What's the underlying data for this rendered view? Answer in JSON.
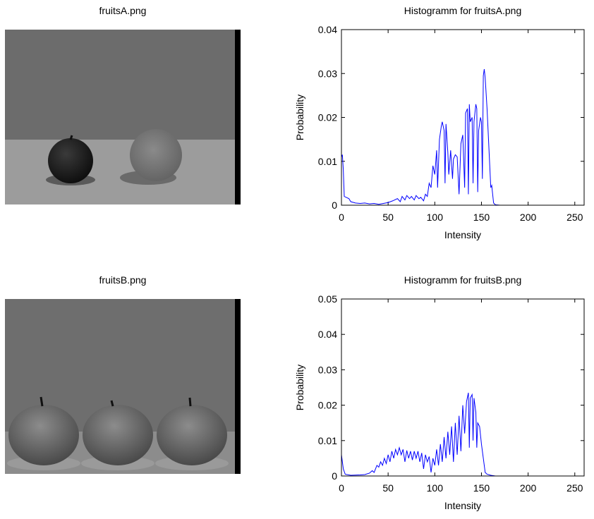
{
  "images": [
    {
      "title": "fruitsA.png"
    },
    {
      "title": "fruitsB.png"
    }
  ],
  "chart_data": [
    {
      "type": "line",
      "title": "Histogramm for fruitsA.png",
      "x_label": "Intensity",
      "y_label": "Probability",
      "color": "#0000ff",
      "xlim": [
        0,
        260
      ],
      "xticks": [
        0,
        50,
        100,
        150,
        200,
        250
      ],
      "ylim": [
        0,
        0.04
      ],
      "yticks": [
        0,
        0.01,
        0.02,
        0.03,
        0.04
      ],
      "x": [
        0,
        1,
        2,
        3,
        5,
        8,
        10,
        15,
        20,
        25,
        30,
        35,
        40,
        45,
        50,
        55,
        60,
        63,
        65,
        68,
        70,
        73,
        75,
        78,
        80,
        83,
        85,
        88,
        90,
        92,
        94,
        96,
        98,
        100,
        102,
        103,
        105,
        107,
        108,
        110,
        111,
        112,
        114,
        115,
        117,
        119,
        120,
        122,
        124,
        126,
        128,
        130,
        132,
        133,
        135,
        136,
        137,
        138,
        140,
        141,
        142,
        144,
        145,
        146,
        147,
        149,
        150,
        151,
        152,
        153,
        154,
        156,
        158,
        160,
        161,
        163,
        165,
        170,
        255
      ],
      "values": [
        0.011,
        0.0115,
        0.008,
        0.002,
        0.0018,
        0.0015,
        0.0008,
        0.0005,
        0.0004,
        0.0005,
        0.0003,
        0.0004,
        0.0002,
        0.0004,
        0.0006,
        0.001,
        0.0015,
        0.0008,
        0.002,
        0.0012,
        0.0022,
        0.0015,
        0.002,
        0.0012,
        0.0022,
        0.0015,
        0.0018,
        0.001,
        0.0025,
        0.002,
        0.005,
        0.004,
        0.009,
        0.007,
        0.0125,
        0.004,
        0.015,
        0.018,
        0.019,
        0.017,
        0.005,
        0.0185,
        0.012,
        0.007,
        0.0125,
        0.006,
        0.0105,
        0.0115,
        0.011,
        0.0025,
        0.014,
        0.016,
        0.004,
        0.021,
        0.022,
        0.0025,
        0.023,
        0.019,
        0.02,
        0.005,
        0.019,
        0.023,
        0.022,
        0.003,
        0.017,
        0.02,
        0.019,
        0.006,
        0.0295,
        0.031,
        0.029,
        0.022,
        0.013,
        0.004,
        0.0045,
        0.0005,
        0.0001,
        0,
        0
      ]
    },
    {
      "type": "line",
      "title": "Histogramm for fruitsB.png",
      "x_label": "Intensity",
      "y_label": "Probability",
      "color": "#0000ff",
      "xlim": [
        0,
        260
      ],
      "xticks": [
        0,
        50,
        100,
        150,
        200,
        250
      ],
      "ylim": [
        0,
        0.05
      ],
      "yticks": [
        0,
        0.01,
        0.02,
        0.03,
        0.04,
        0.05
      ],
      "x": [
        0,
        1,
        2,
        4,
        10,
        20,
        25,
        30,
        33,
        35,
        38,
        40,
        42,
        44,
        46,
        48,
        50,
        52,
        54,
        56,
        58,
        60,
        62,
        64,
        66,
        68,
        70,
        72,
        74,
        76,
        78,
        80,
        82,
        84,
        86,
        88,
        90,
        92,
        94,
        96,
        98,
        100,
        102,
        104,
        106,
        108,
        110,
        112,
        114,
        116,
        118,
        120,
        122,
        124,
        126,
        128,
        130,
        132,
        134,
        136,
        137,
        138,
        140,
        141,
        142,
        144,
        145,
        146,
        148,
        150,
        152,
        154,
        156,
        160,
        165,
        255
      ],
      "values": [
        0.006,
        0.004,
        0.002,
        0.0005,
        0.0002,
        0.0003,
        0.0004,
        0.0008,
        0.0015,
        0.001,
        0.003,
        0.0025,
        0.004,
        0.003,
        0.005,
        0.0035,
        0.006,
        0.004,
        0.007,
        0.005,
        0.0075,
        0.006,
        0.008,
        0.006,
        0.0075,
        0.004,
        0.0072,
        0.005,
        0.007,
        0.0045,
        0.007,
        0.005,
        0.007,
        0.004,
        0.0065,
        0.002,
        0.006,
        0.004,
        0.0055,
        0.001,
        0.005,
        0.003,
        0.0075,
        0.003,
        0.009,
        0.004,
        0.011,
        0.005,
        0.0125,
        0.006,
        0.014,
        0.004,
        0.015,
        0.006,
        0.017,
        0.007,
        0.02,
        0.012,
        0.021,
        0.0235,
        0.008,
        0.022,
        0.023,
        0.01,
        0.022,
        0.018,
        0.008,
        0.015,
        0.014,
        0.009,
        0.005,
        0.001,
        0.0005,
        0.0002,
        0,
        0
      ]
    }
  ]
}
